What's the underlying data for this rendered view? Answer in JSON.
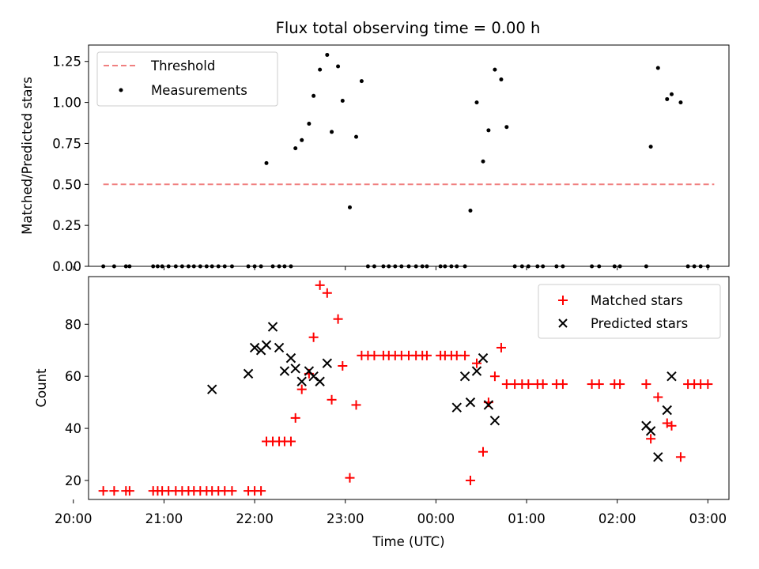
{
  "chart_data": [
    {
      "type": "scatter",
      "title": "Flux total observing time = 0.00 h",
      "xlabel": "",
      "ylabel": "Matched/Predicted stars",
      "xlim": [
        20.1675,
        27.2325
      ],
      "ylim": [
        0.0,
        1.35
      ],
      "yticks": [
        "0.00",
        "0.25",
        "0.50",
        "0.75",
        "1.00",
        "1.25"
      ],
      "grid": false,
      "legend": "top-left",
      "series": [
        {
          "name": "Threshold",
          "style": "dashed-line",
          "color": "#f08080",
          "x": [
            20.33,
            27.07
          ],
          "y": [
            0.5,
            0.5
          ]
        },
        {
          "name": "Measurements",
          "style": "dot",
          "color": "#000000",
          "x": [
            20.33,
            20.45,
            20.58,
            20.62,
            20.88,
            20.93,
            20.98,
            21.05,
            21.13,
            21.2,
            21.27,
            21.33,
            21.4,
            21.47,
            21.53,
            21.6,
            21.67,
            21.75,
            21.93,
            22.0,
            22.07,
            22.13,
            22.2,
            22.27,
            22.33,
            22.4,
            22.45,
            22.52,
            22.6,
            22.65,
            22.72,
            22.8,
            22.85,
            22.92,
            22.97,
            23.05,
            23.12,
            23.18,
            23.25,
            23.32,
            23.42,
            23.48,
            23.55,
            23.62,
            23.7,
            23.78,
            23.85,
            23.9,
            24.05,
            24.1,
            24.17,
            24.23,
            24.32,
            24.38,
            24.45,
            24.52,
            24.58,
            24.65,
            24.72,
            24.78,
            24.87,
            24.95,
            25.02,
            25.12,
            25.18,
            25.33,
            25.4,
            25.72,
            25.8,
            25.97,
            26.03,
            26.32,
            26.37,
            26.45,
            26.55,
            26.6,
            26.7,
            26.78,
            26.85,
            26.92,
            27.0
          ],
          "y": [
            0,
            0,
            0,
            0,
            0,
            0,
            0,
            0,
            0,
            0,
            0,
            0,
            0,
            0,
            0,
            0,
            0,
            0,
            0,
            0,
            0,
            0.63,
            0,
            0,
            0,
            0,
            0.72,
            0.77,
            0.87,
            1.04,
            1.2,
            1.29,
            0.82,
            1.22,
            1.01,
            0.36,
            0.79,
            1.13,
            0,
            0,
            0,
            0,
            0,
            0,
            0,
            0,
            0,
            0,
            0,
            0,
            0,
            0,
            0,
            0.34,
            1.0,
            0.64,
            0.83,
            1.2,
            1.14,
            0.85,
            0,
            0,
            0,
            0,
            0,
            0,
            0,
            0,
            0,
            0,
            0,
            0,
            0.73,
            1.21,
            1.02,
            1.05,
            1.0,
            0,
            0,
            0,
            0
          ]
        }
      ]
    },
    {
      "type": "scatter",
      "title": "",
      "xlabel": "Time (UTC)",
      "ylabel": "Count",
      "xlim": [
        20.1675,
        27.2325
      ],
      "ylim": [
        12.7,
        98.3
      ],
      "yticks": [
        "20",
        "40",
        "60",
        "80"
      ],
      "xticks": [
        "20:00",
        "21:00",
        "22:00",
        "23:00",
        "00:00",
        "01:00",
        "02:00",
        "03:00"
      ],
      "grid": false,
      "legend": "top-right",
      "series": [
        {
          "name": "Matched stars",
          "marker": "plus",
          "color": "#ff0000",
          "x": [
            20.33,
            20.45,
            20.58,
            20.62,
            20.88,
            20.93,
            20.98,
            21.05,
            21.13,
            21.2,
            21.27,
            21.33,
            21.4,
            21.47,
            21.53,
            21.6,
            21.67,
            21.75,
            21.93,
            22.0,
            22.07,
            22.13,
            22.2,
            22.27,
            22.33,
            22.4,
            22.45,
            22.52,
            22.6,
            22.65,
            22.72,
            22.8,
            22.85,
            22.92,
            22.97,
            23.05,
            23.12,
            23.18,
            23.25,
            23.32,
            23.42,
            23.48,
            23.55,
            23.62,
            23.7,
            23.78,
            23.85,
            23.9,
            24.05,
            24.1,
            24.17,
            24.23,
            24.32,
            24.38,
            24.45,
            24.52,
            24.58,
            24.65,
            24.72,
            24.78,
            24.87,
            24.95,
            25.02,
            25.12,
            25.18,
            25.33,
            25.4,
            25.72,
            25.8,
            25.97,
            26.03,
            26.32,
            26.37,
            26.45,
            26.55,
            26.6,
            26.7,
            26.78,
            26.85,
            26.92,
            27.0
          ],
          "y": [
            16,
            16,
            16,
            16,
            16,
            16,
            16,
            16,
            16,
            16,
            16,
            16,
            16,
            16,
            16,
            16,
            16,
            16,
            16,
            16,
            16,
            35,
            35,
            35,
            35,
            35,
            44,
            55,
            61,
            75,
            95,
            92,
            51,
            82,
            64,
            21,
            49,
            68,
            68,
            68,
            68,
            68,
            68,
            68,
            68,
            68,
            68,
            68,
            68,
            68,
            68,
            68,
            68,
            20,
            65,
            31,
            50,
            60,
            71,
            57,
            57,
            57,
            57,
            57,
            57,
            57,
            57,
            57,
            57,
            57,
            57,
            57,
            36,
            52,
            42,
            41,
            29,
            57,
            57,
            57,
            57
          ]
        },
        {
          "name": "Predicted stars",
          "marker": "x",
          "color": "#000000",
          "x": [
            21.53,
            21.93,
            22.0,
            22.07,
            22.13,
            22.2,
            22.27,
            22.33,
            22.4,
            22.45,
            22.52,
            22.6,
            22.65,
            22.72,
            22.8,
            24.23,
            24.32,
            24.38,
            24.45,
            24.52,
            24.58,
            24.65,
            26.32,
            26.37,
            26.45,
            26.55,
            26.6
          ],
          "y": [
            55,
            61,
            71,
            70,
            72,
            79,
            71,
            62,
            67,
            63,
            58,
            62,
            60,
            58,
            65,
            48,
            60,
            50,
            62,
            67,
            49,
            43,
            41,
            39,
            29,
            47,
            60
          ]
        }
      ]
    }
  ]
}
